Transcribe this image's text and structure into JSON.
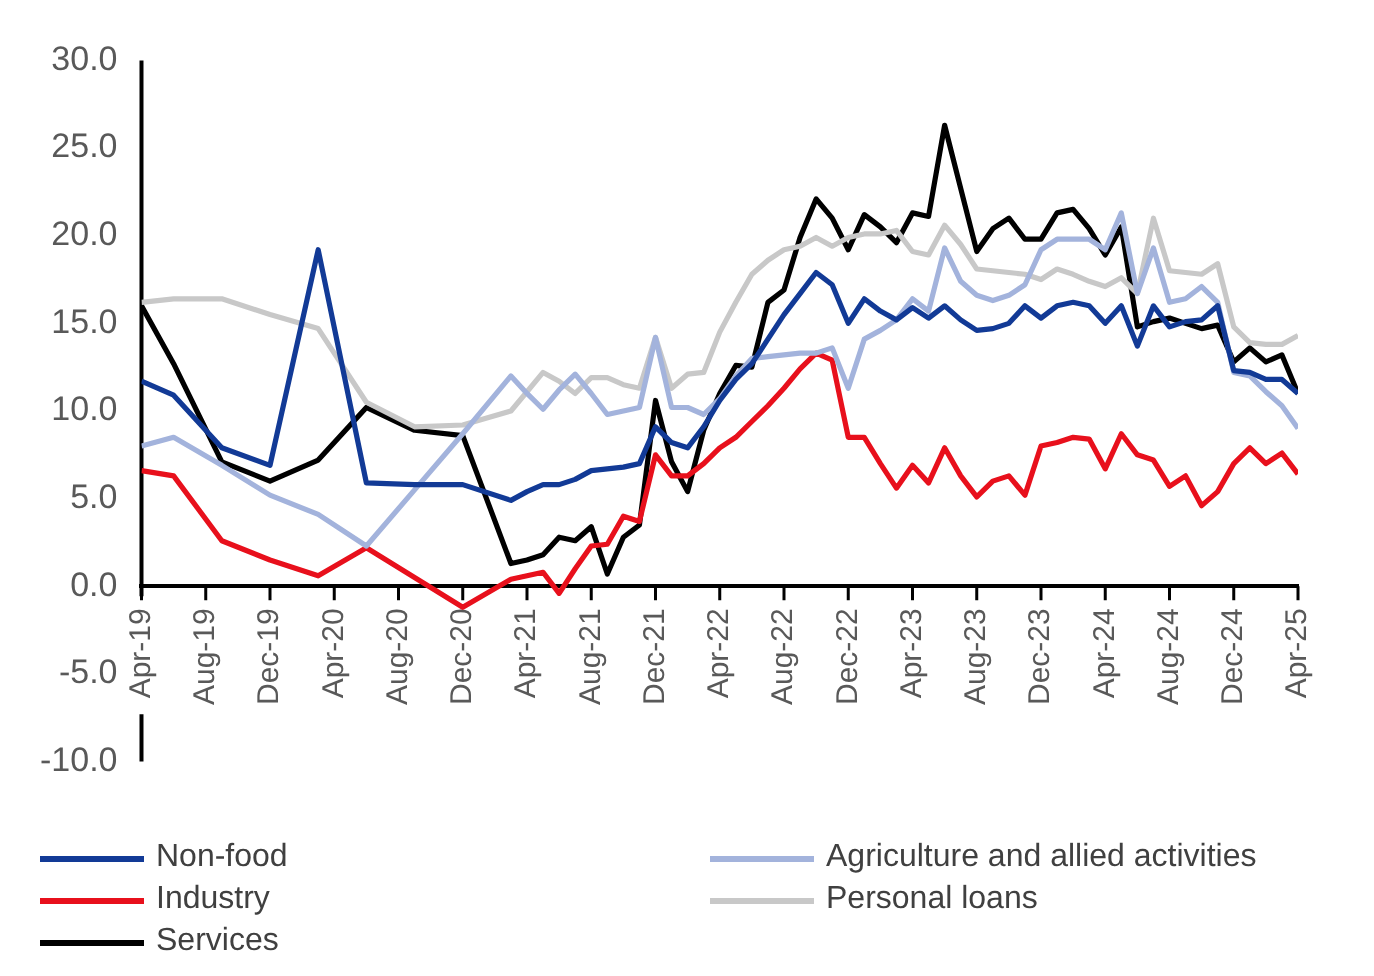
{
  "chart_data": {
    "type": "line",
    "x": [
      "2019-04",
      "2019-06",
      "2019-09",
      "2019-12",
      "2020-03",
      "2020-06",
      "2020-09",
      "2020-12",
      "2021-03",
      "2021-04",
      "2021-05",
      "2021-06",
      "2021-07",
      "2021-08",
      "2021-09",
      "2021-10",
      "2021-11",
      "2021-12",
      "2022-01",
      "2022-02",
      "2022-03",
      "2022-04",
      "2022-05",
      "2022-06",
      "2022-07",
      "2022-08",
      "2022-09",
      "2022-10",
      "2022-11",
      "2022-12",
      "2023-01",
      "2023-02",
      "2023-03",
      "2023-04",
      "2023-05",
      "2023-06",
      "2023-07",
      "2023-08",
      "2023-09",
      "2023-10",
      "2023-11",
      "2023-12",
      "2024-01",
      "2024-02",
      "2024-03",
      "2024-04",
      "2024-05",
      "2024-06",
      "2024-07",
      "2024-08",
      "2024-09",
      "2024-10",
      "2024-11",
      "2024-12",
      "2025-01",
      "2025-02",
      "2025-03",
      "2025-04"
    ],
    "series": [
      {
        "name": "Non-food",
        "color": "#123a96",
        "values": [
          11.7,
          10.9,
          7.9,
          6.9,
          19.2,
          5.9,
          5.8,
          5.8,
          4.9,
          5.4,
          5.8,
          5.8,
          6.1,
          6.6,
          6.7,
          6.8,
          7.0,
          9.1,
          8.2,
          7.9,
          9.1,
          10.6,
          11.8,
          12.7,
          14.1,
          15.5,
          16.7,
          17.9,
          17.2,
          15.0,
          16.4,
          15.7,
          15.2,
          15.9,
          15.3,
          16.0,
          15.2,
          14.6,
          14.7,
          15.0,
          16.0,
          15.3,
          16.0,
          16.2,
          16.0,
          15.0,
          16.0,
          13.7,
          16.0,
          14.8,
          15.1,
          15.2,
          16.0,
          12.3,
          12.2,
          11.8,
          11.8,
          11.0
        ]
      },
      {
        "name": "Agriculture and allied activities",
        "color": "#a3b3dc",
        "values": [
          8.0,
          8.5,
          6.9,
          5.2,
          4.1,
          2.3,
          5.5,
          8.7,
          12.0,
          11.0,
          10.1,
          11.2,
          12.1,
          11.0,
          9.8,
          10.0,
          10.2,
          14.2,
          10.2,
          10.2,
          9.8,
          10.7,
          12.0,
          13.0,
          13.1,
          13.2,
          13.3,
          13.3,
          13.6,
          11.3,
          14.1,
          14.6,
          15.2,
          16.4,
          15.7,
          19.3,
          17.4,
          16.6,
          16.3,
          16.6,
          17.2,
          19.2,
          19.8,
          19.8,
          19.8,
          19.2,
          21.3,
          16.7,
          19.3,
          16.2,
          16.4,
          17.1,
          16.2,
          12.2,
          12.0,
          11.1,
          10.3,
          9.0
        ]
      },
      {
        "name": "Industry",
        "color": "#e8101c",
        "values": [
          6.6,
          6.3,
          2.6,
          1.5,
          0.6,
          2.2,
          0.5,
          -1.2,
          0.4,
          0.6,
          0.8,
          -0.4,
          1.0,
          2.3,
          2.4,
          4.0,
          3.7,
          7.5,
          6.3,
          6.3,
          7.0,
          7.9,
          8.5,
          9.4,
          10.3,
          11.3,
          12.4,
          13.3,
          12.9,
          8.5,
          8.5,
          7.0,
          5.6,
          6.9,
          5.9,
          7.9,
          6.3,
          5.1,
          6.0,
          6.3,
          5.2,
          8.0,
          8.2,
          8.5,
          8.4,
          6.7,
          8.7,
          7.5,
          7.2,
          5.7,
          6.3,
          4.6,
          5.4,
          7.0,
          7.9,
          7.0,
          7.6,
          6.4
        ]
      },
      {
        "name": "Personal loans",
        "color": "#c8c8c8",
        "values": [
          16.2,
          16.4,
          16.4,
          15.5,
          14.7,
          10.5,
          9.1,
          9.2,
          10.0,
          11.1,
          12.2,
          11.7,
          11.0,
          11.9,
          11.9,
          11.5,
          11.3,
          14.2,
          11.3,
          12.1,
          12.2,
          14.5,
          16.2,
          17.8,
          18.6,
          19.2,
          19.4,
          19.9,
          19.4,
          19.9,
          20.1,
          20.1,
          20.3,
          19.1,
          18.9,
          20.6,
          19.5,
          18.1,
          18.0,
          17.9,
          17.8,
          17.5,
          18.1,
          17.8,
          17.4,
          17.1,
          17.6,
          16.7,
          21.0,
          18.0,
          17.9,
          17.8,
          18.4,
          14.8,
          13.9,
          13.8,
          13.8,
          14.3
        ]
      },
      {
        "name": "Services",
        "color": "#000000",
        "values": [
          16.0,
          12.7,
          7.1,
          6.0,
          7.2,
          10.2,
          8.9,
          8.6,
          1.3,
          1.5,
          1.8,
          2.8,
          2.6,
          3.4,
          0.7,
          2.8,
          3.5,
          10.6,
          7.1,
          5.4,
          8.9,
          11.0,
          12.6,
          12.5,
          16.2,
          16.9,
          19.9,
          22.1,
          21.0,
          19.2,
          21.2,
          20.5,
          19.6,
          21.3,
          21.1,
          26.3,
          22.7,
          19.1,
          20.4,
          21.0,
          19.8,
          19.8,
          21.3,
          21.5,
          20.4,
          18.9,
          20.5,
          14.8,
          15.1,
          15.3,
          15.0,
          14.7,
          14.9,
          12.8,
          13.6,
          12.8,
          13.2,
          11.0
        ]
      }
    ],
    "xlim": [
      "2019-04",
      "2025-04"
    ],
    "xticks": [
      {
        "value": "2019-04",
        "label": "Apr-19"
      },
      {
        "value": "2019-08",
        "label": "Aug-19"
      },
      {
        "value": "2019-12",
        "label": "Dec-19"
      },
      {
        "value": "2020-04",
        "label": "Apr-20"
      },
      {
        "value": "2020-08",
        "label": "Aug-20"
      },
      {
        "value": "2020-12",
        "label": "Dec-20"
      },
      {
        "value": "2021-04",
        "label": "Apr-21"
      },
      {
        "value": "2021-08",
        "label": "Aug-21"
      },
      {
        "value": "2021-12",
        "label": "Dec-21"
      },
      {
        "value": "2022-04",
        "label": "Apr-22"
      },
      {
        "value": "2022-08",
        "label": "Aug-22"
      },
      {
        "value": "2022-12",
        "label": "Dec-22"
      },
      {
        "value": "2023-04",
        "label": "Apr-23"
      },
      {
        "value": "2023-08",
        "label": "Aug-23"
      },
      {
        "value": "2023-12",
        "label": "Dec-23"
      },
      {
        "value": "2024-04",
        "label": "Apr-24"
      },
      {
        "value": "2024-08",
        "label": "Aug-24"
      },
      {
        "value": "2024-12",
        "label": "Dec-24"
      },
      {
        "value": "2025-04",
        "label": "Apr-25"
      }
    ],
    "ylim": [
      -10,
      30
    ],
    "yticks": [
      {
        "value": -10,
        "label": "-10.0"
      },
      {
        "value": -5,
        "label": "-5.0"
      },
      {
        "value": 0,
        "label": "0.0"
      },
      {
        "value": 5,
        "label": "5.0"
      },
      {
        "value": 10,
        "label": "10.0"
      },
      {
        "value": 15,
        "label": "15.0"
      },
      {
        "value": 20,
        "label": "20.0"
      },
      {
        "value": 25,
        "label": "25.0"
      },
      {
        "value": 30,
        "label": "30.0"
      }
    ],
    "grid": false,
    "legend": "bottom",
    "marker": "none",
    "line_style": "solid"
  }
}
